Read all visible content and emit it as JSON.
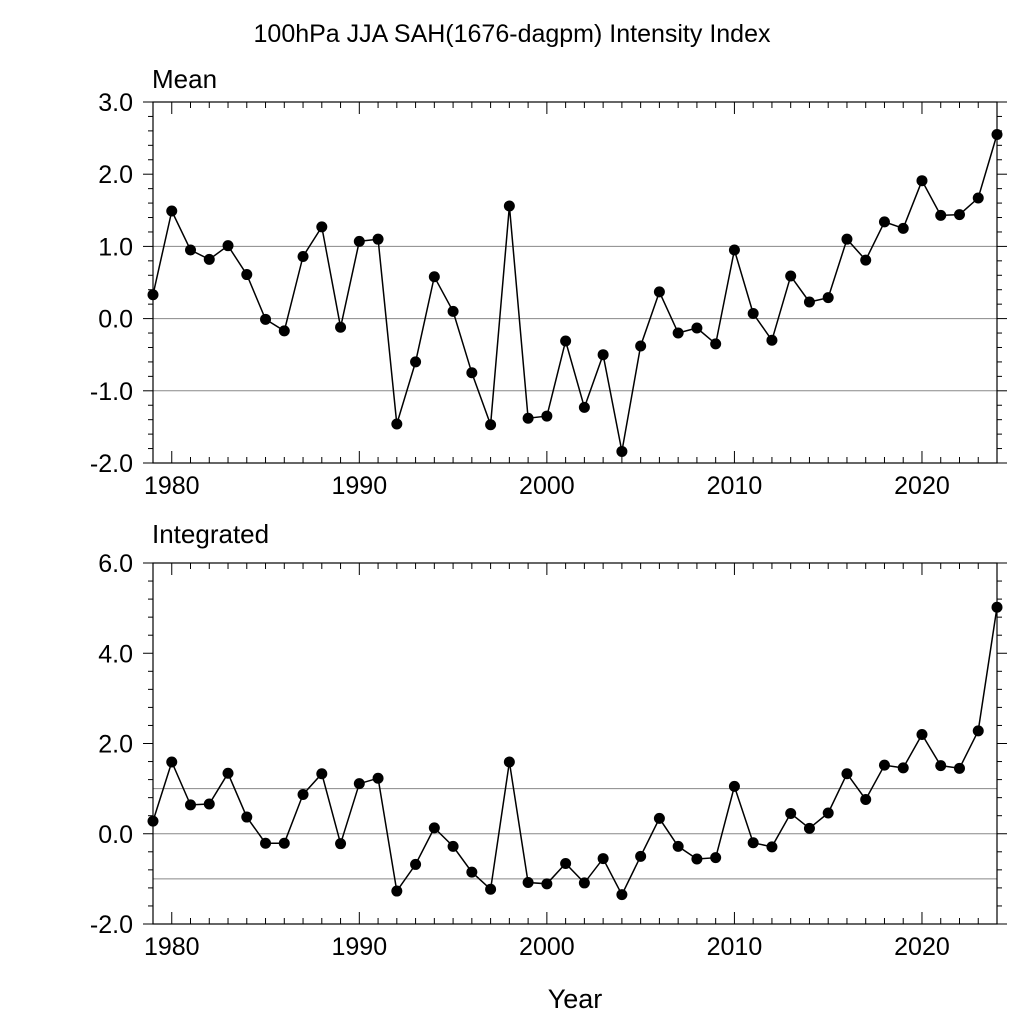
{
  "chart_data": [
    {
      "type": "line",
      "title": "100hPa JJA SAH(1676-dagpm) Intensity Index",
      "panel_label": "Mean",
      "xlabel": "",
      "ylabel": "",
      "xlim": [
        1979,
        2024
      ],
      "ylim": [
        -2.0,
        3.0
      ],
      "x_ticks": [
        1980,
        1990,
        2000,
        2010,
        2020
      ],
      "x_tick_labels": [
        "1980",
        "1990",
        "2000",
        "2010",
        "2020"
      ],
      "y_ticks": [
        -2.0,
        -1.0,
        0.0,
        1.0,
        2.0,
        3.0
      ],
      "y_tick_labels": [
        "-2.0",
        "-1.0",
        "0.0",
        "1.0",
        "2.0",
        "3.0"
      ],
      "reference_lines": [
        -1.0,
        0.0,
        1.0
      ],
      "marker": "filled-circle",
      "line_color": "#000000",
      "grid": false,
      "x": [
        1979,
        1980,
        1981,
        1982,
        1983,
        1984,
        1985,
        1986,
        1987,
        1988,
        1989,
        1990,
        1991,
        1992,
        1993,
        1994,
        1995,
        1996,
        1997,
        1998,
        1999,
        2000,
        2001,
        2002,
        2003,
        2004,
        2005,
        2006,
        2007,
        2008,
        2009,
        2010,
        2011,
        2012,
        2013,
        2014,
        2015,
        2016,
        2017,
        2018,
        2019,
        2020,
        2021,
        2022,
        2023,
        2024
      ],
      "values": [
        0.33,
        1.49,
        0.95,
        0.82,
        1.01,
        0.61,
        -0.01,
        -0.17,
        0.86,
        1.27,
        -0.12,
        1.07,
        1.1,
        -1.46,
        -0.6,
        0.58,
        0.1,
        -0.75,
        -1.47,
        1.56,
        -1.38,
        -1.35,
        -0.31,
        -1.23,
        -0.5,
        -1.84,
        -0.38,
        0.37,
        -0.2,
        -0.13,
        -0.35,
        0.95,
        0.07,
        -0.3,
        0.59,
        0.23,
        0.29,
        1.1,
        0.81,
        1.34,
        1.25,
        1.91,
        1.43,
        1.44,
        1.67,
        2.55
      ]
    },
    {
      "type": "line",
      "panel_label": "Integrated",
      "xlabel": "Year",
      "ylabel": "",
      "xlim": [
        1979,
        2024
      ],
      "ylim": [
        -2.0,
        6.0
      ],
      "x_ticks": [
        1980,
        1990,
        2000,
        2010,
        2020
      ],
      "x_tick_labels": [
        "1980",
        "1990",
        "2000",
        "2010",
        "2020"
      ],
      "y_ticks": [
        -2.0,
        0.0,
        2.0,
        4.0,
        6.0
      ],
      "y_tick_labels": [
        "-2.0",
        "0.0",
        "2.0",
        "4.0",
        "6.0"
      ],
      "reference_lines": [
        -1.0,
        0.0,
        1.0
      ],
      "marker": "filled-circle",
      "line_color": "#000000",
      "grid": false,
      "x": [
        1979,
        1980,
        1981,
        1982,
        1983,
        1984,
        1985,
        1986,
        1987,
        1988,
        1989,
        1990,
        1991,
        1992,
        1993,
        1994,
        1995,
        1996,
        1997,
        1998,
        1999,
        2000,
        2001,
        2002,
        2003,
        2004,
        2005,
        2006,
        2007,
        2008,
        2009,
        2010,
        2011,
        2012,
        2013,
        2014,
        2015,
        2016,
        2017,
        2018,
        2019,
        2020,
        2021,
        2022,
        2023,
        2024
      ],
      "values": [
        0.28,
        1.59,
        0.64,
        0.66,
        1.34,
        0.37,
        -0.21,
        -0.21,
        0.87,
        1.33,
        -0.22,
        1.11,
        1.23,
        -1.27,
        -0.68,
        0.13,
        -0.28,
        -0.85,
        -1.23,
        1.59,
        -1.08,
        -1.11,
        -0.66,
        -1.09,
        -0.55,
        -1.35,
        -0.5,
        0.34,
        -0.28,
        -0.56,
        -0.53,
        1.05,
        -0.2,
        -0.29,
        0.45,
        0.12,
        0.46,
        1.33,
        0.76,
        1.52,
        1.46,
        2.2,
        1.51,
        1.45,
        2.28,
        5.02
      ]
    }
  ]
}
